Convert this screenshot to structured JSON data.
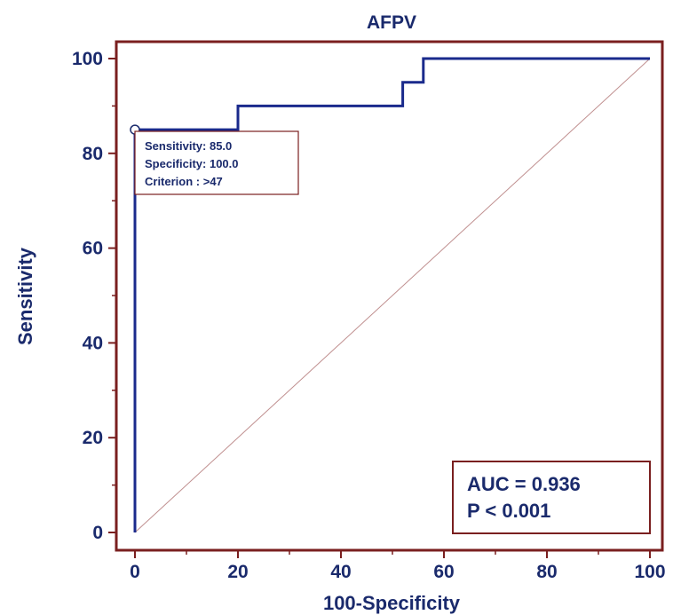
{
  "chart_data": {
    "type": "line",
    "title": "AFPV",
    "xlabel": "100-Specificity",
    "ylabel": "Sensitivity",
    "xlim": [
      0,
      100
    ],
    "ylim": [
      0,
      100
    ],
    "xticks": [
      0,
      20,
      40,
      60,
      80,
      100
    ],
    "yticks": [
      0,
      20,
      40,
      60,
      80,
      100
    ],
    "grid": false,
    "series": [
      {
        "x": [
          0,
          0,
          20,
          20,
          52,
          52,
          56,
          56,
          100
        ],
        "y": [
          0,
          85,
          85,
          90,
          90,
          95,
          95,
          100,
          100
        ],
        "color": "#1a2a8c"
      },
      {
        "x": [
          0,
          100
        ],
        "y": [
          0,
          100
        ],
        "color": "#c09090"
      }
    ],
    "marker": {
      "x": 0,
      "y": 85
    },
    "annotation": {
      "sensitivity": "Sensitivity: 85.0",
      "specificity": "Specificity: 100.0",
      "criterion": "Criterion : >47"
    },
    "stats": {
      "auc": "AUC = 0.936",
      "p": "P < 0.001"
    },
    "colors": {
      "frame": "#7a1f1f",
      "text": "#1a2a6c"
    }
  }
}
